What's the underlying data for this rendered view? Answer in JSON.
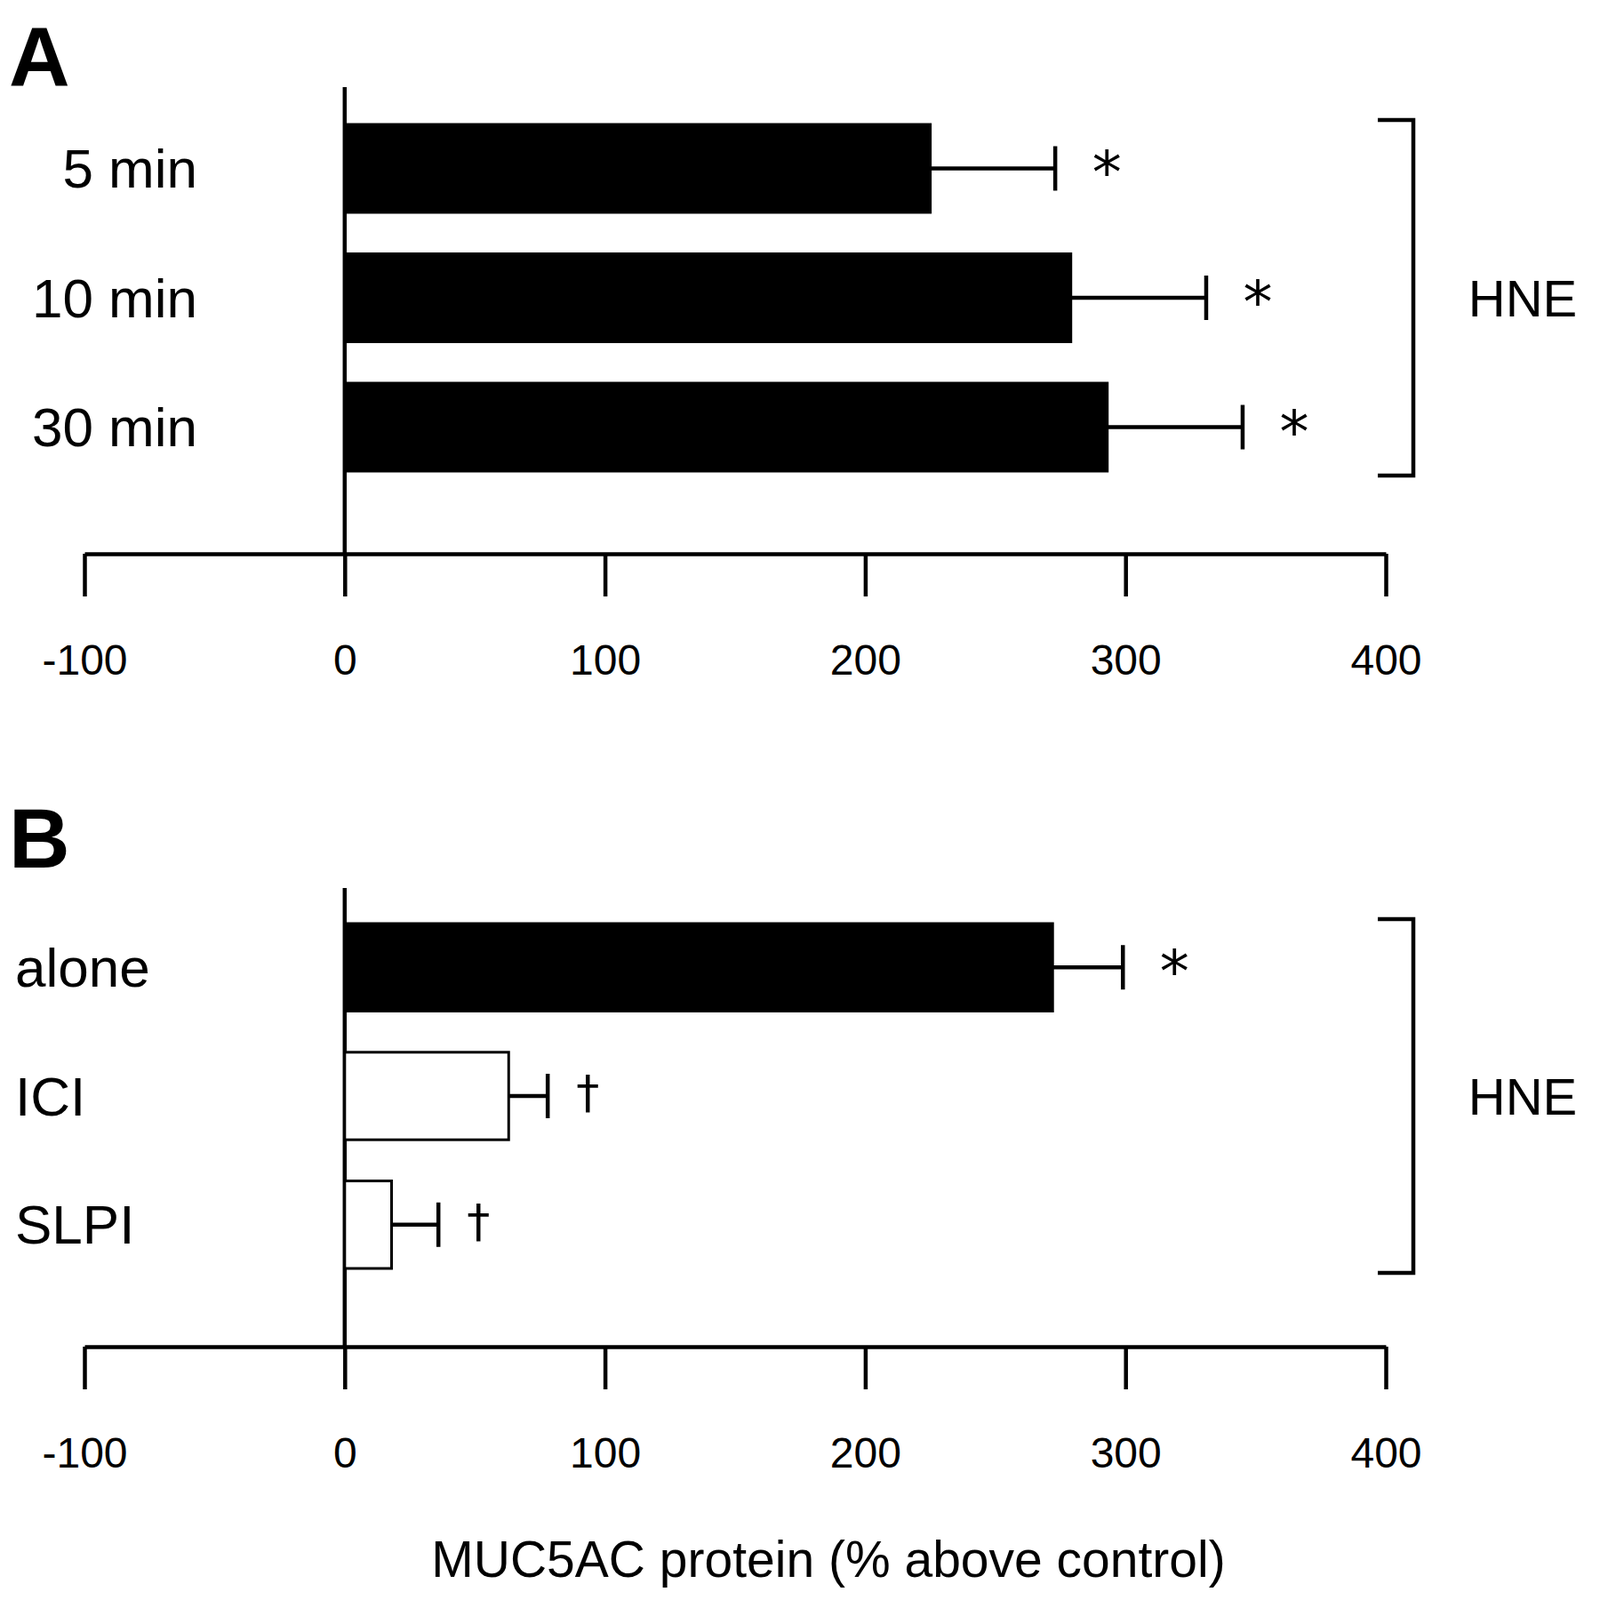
{
  "chart_data": [
    {
      "type": "bar",
      "orientation": "horizontal",
      "title": "A",
      "categories": [
        "5 min",
        "10 min",
        "30 min"
      ],
      "values": [
        225,
        279,
        293
      ],
      "errors": [
        48,
        52,
        52
      ],
      "colors": [
        "#000000",
        "#000000",
        "#000000"
      ],
      "annotations": [
        "*",
        "*",
        "*"
      ],
      "group_label": "HNE",
      "xlim": [
        -100,
        400
      ],
      "xticks": [
        -100,
        0,
        100,
        200,
        300,
        400
      ]
    },
    {
      "type": "bar",
      "orientation": "horizontal",
      "title": "B",
      "categories": [
        "alone",
        "ICI",
        "SLPI"
      ],
      "values": [
        272,
        63,
        18
      ],
      "errors": [
        27,
        15,
        18
      ],
      "colors": [
        "#000000",
        "#ffffff",
        "#ffffff"
      ],
      "annotations": [
        "*",
        "†",
        "†"
      ],
      "group_label": "HNE",
      "xlabel": "MUC5AC protein (% above control)",
      "xlim": [
        -100,
        400
      ],
      "xticks": [
        -100,
        0,
        100,
        200,
        300,
        400
      ]
    }
  ]
}
